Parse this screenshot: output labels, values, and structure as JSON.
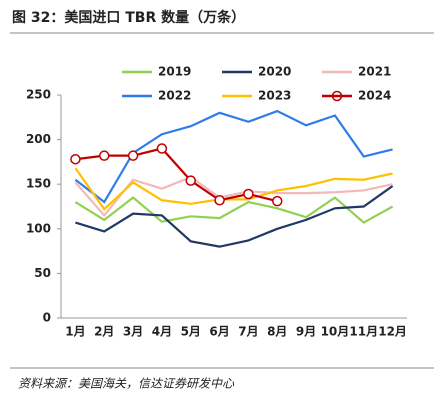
{
  "chart_data": {
    "type": "line",
    "title": "图 32：美国进口 TBR 数量（万条）",
    "source": "资料来源：美国海关，信达证券研发中心",
    "categories": [
      "1月",
      "2月",
      "3月",
      "4月",
      "5月",
      "6月",
      "7月",
      "8月",
      "9月",
      "10月",
      "11月",
      "12月"
    ],
    "series": [
      {
        "name": "2019",
        "color": "#92d050",
        "values": [
          130,
          110,
          135,
          108,
          114,
          112,
          130,
          123,
          113,
          135,
          107,
          125
        ]
      },
      {
        "name": "2020",
        "color": "#1f3864",
        "values": [
          107,
          97,
          117,
          115,
          86,
          80,
          87,
          100,
          110,
          123,
          125,
          148
        ]
      },
      {
        "name": "2021",
        "color": "#f4b8b8",
        "values": [
          152,
          115,
          155,
          145,
          158,
          135,
          142,
          140,
          140,
          141,
          143,
          150
        ]
      },
      {
        "name": "2022",
        "color": "#2f7bea",
        "values": [
          155,
          130,
          185,
          206,
          215,
          230,
          220,
          232,
          216,
          227,
          181,
          189
        ]
      },
      {
        "name": "2023",
        "color": "#ffc000",
        "values": [
          168,
          122,
          152,
          132,
          128,
          133,
          133,
          143,
          148,
          156,
          155,
          162
        ]
      },
      {
        "name": "2024",
        "color": "#c00000",
        "markers": true,
        "values": [
          178,
          182,
          182,
          190,
          154,
          132,
          139,
          131,
          null,
          null,
          null,
          null
        ]
      }
    ],
    "ylim": [
      0,
      250
    ],
    "yticks": [
      0,
      50,
      100,
      150,
      200,
      250
    ],
    "grid": false
  }
}
